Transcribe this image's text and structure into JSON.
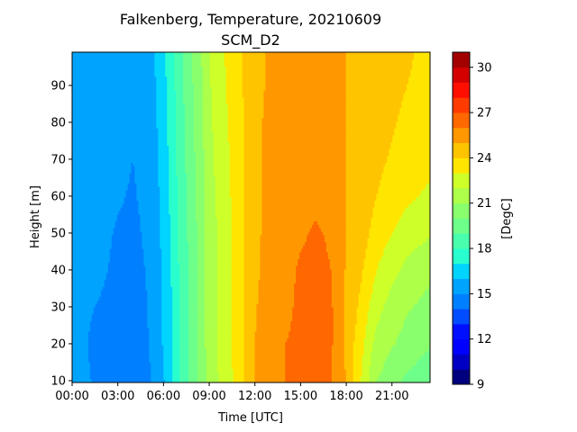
{
  "chart_data": {
    "type": "heatmap",
    "title": "Falkenberg, Temperature, 20210609",
    "subtitle": "SCM_D2",
    "xlabel": "Time [UTC]",
    "ylabel": "Height [m]",
    "colorbar_label": "[DegC]",
    "x_ticks": [
      "00:00",
      "03:00",
      "06:00",
      "09:00",
      "12:00",
      "15:00",
      "18:00",
      "21:00"
    ],
    "x_tick_hours": [
      0,
      3,
      6,
      9,
      12,
      15,
      18,
      21
    ],
    "xlim_hours": [
      0,
      23.5
    ],
    "y_ticks": [
      10,
      20,
      30,
      40,
      50,
      60,
      70,
      80,
      90
    ],
    "ylim": [
      9.5,
      99
    ],
    "colorbar_ticks": [
      9,
      12,
      15,
      18,
      21,
      24,
      27,
      30
    ],
    "colorbar_range": [
      9,
      31
    ],
    "colorbar_step": 1,
    "colorbar_colors": [
      "#00007f",
      "#0000c4",
      "#0000ff",
      "#0010ff",
      "#004cff",
      "#0080ff",
      "#00a4ff",
      "#00d4ff",
      "#29ffce",
      "#49ffad",
      "#6dff8a",
      "#8aff6d",
      "#adff49",
      "#ceff29",
      "#ffe600",
      "#ffc400",
      "#ff9800",
      "#ff6800",
      "#ff3b00",
      "#ff0f00",
      "#d40000",
      "#a30000"
    ],
    "heights_m": [
      10,
      20,
      30,
      40,
      50,
      60,
      70,
      80,
      90,
      99
    ],
    "series": [
      {
        "height_m": 10,
        "times_h": [
          0,
          0.5,
          1,
          1.5,
          2,
          3,
          4,
          4.8,
          5.5,
          6,
          6.5,
          7,
          7.5,
          8,
          8.5,
          9,
          10,
          11,
          12,
          13,
          14,
          15,
          16,
          17,
          17.5,
          18,
          18.5,
          19,
          19.5,
          20,
          21,
          22,
          23.5
        ],
        "temps_c": [
          15.6,
          15.4,
          15.1,
          14.9,
          14.8,
          14.7,
          14.5,
          14.7,
          15.2,
          15.9,
          16.8,
          17.9,
          18.7,
          19.6,
          20.4,
          21.4,
          22.4,
          23.5,
          25.0,
          25.8,
          26.0,
          26.2,
          26.2,
          26.0,
          25.7,
          24.9,
          23.8,
          22.9,
          21.9,
          21.0,
          20.3,
          19.8,
          19.3
        ]
      },
      {
        "height_m": 20,
        "times_h": [
          0,
          0.5,
          1,
          1.5,
          2,
          3,
          4,
          4.8,
          5.5,
          6,
          6.5,
          7,
          7.5,
          8,
          8.5,
          9,
          10,
          11,
          12,
          13,
          14,
          15,
          16,
          17,
          17.5,
          18,
          18.5,
          19,
          19.5,
          20,
          21,
          22,
          23.5
        ],
        "temps_c": [
          15.5,
          15.3,
          15.0,
          14.8,
          14.7,
          14.6,
          14.6,
          14.8,
          15.4,
          16.1,
          16.9,
          18.0,
          18.8,
          19.6,
          20.5,
          21.5,
          22.5,
          23.6,
          25.0,
          25.7,
          26.0,
          26.1,
          26.2,
          26.1,
          25.6,
          24.8,
          24.0,
          23.3,
          22.4,
          21.7,
          21.1,
          20.6,
          20.1
        ]
      },
      {
        "height_m": 30,
        "times_h": [
          0,
          0.5,
          1,
          1.5,
          2,
          3,
          4,
          4.8,
          5.5,
          6,
          6.5,
          7,
          7.5,
          8,
          8.5,
          9,
          10,
          11,
          12,
          13,
          14,
          15,
          16,
          17,
          17.5,
          18,
          18.5,
          19,
          19.5,
          20,
          21,
          22,
          23.5
        ],
        "temps_c": [
          15.5,
          15.3,
          15.1,
          15.0,
          14.9,
          14.7,
          14.6,
          14.9,
          15.4,
          16.1,
          16.9,
          18.0,
          18.8,
          19.6,
          20.5,
          21.5,
          22.5,
          23.6,
          24.9,
          25.6,
          25.9,
          26.1,
          26.2,
          26.1,
          25.6,
          24.8,
          24.3,
          23.7,
          23.0,
          22.3,
          21.6,
          21.1,
          20.7
        ]
      },
      {
        "height_m": 40,
        "times_h": [
          0,
          0.5,
          1,
          1.5,
          2,
          3,
          4,
          4.8,
          5.5,
          6,
          6.5,
          7,
          7.5,
          8,
          8.5,
          9,
          10,
          11,
          12,
          13,
          14,
          15,
          16,
          17,
          17.5,
          18,
          18.5,
          19,
          19.5,
          20,
          21,
          22,
          23.5
        ],
        "temps_c": [
          15.6,
          15.4,
          15.3,
          15.2,
          15.1,
          14.8,
          14.7,
          15.0,
          15.5,
          16.2,
          17.0,
          18.0,
          18.8,
          19.6,
          20.5,
          21.5,
          22.5,
          23.6,
          24.8,
          25.4,
          25.8,
          26.1,
          26.2,
          26.0,
          25.5,
          24.9,
          24.5,
          24.1,
          23.6,
          23.0,
          22.3,
          21.7,
          21.2
        ]
      },
      {
        "height_m": 50,
        "times_h": [
          0,
          0.5,
          1,
          1.5,
          2,
          3,
          4,
          4.8,
          5.5,
          6,
          6.5,
          7,
          7.5,
          8,
          8.5,
          9,
          10,
          11,
          12,
          13,
          14,
          15,
          16,
          17,
          17.5,
          18,
          18.5,
          19,
          19.5,
          20,
          21,
          22,
          23.5
        ],
        "temps_c": [
          15.6,
          15.5,
          15.4,
          15.3,
          15.2,
          14.9,
          14.8,
          15.1,
          15.6,
          16.3,
          17.1,
          18.1,
          18.9,
          19.7,
          20.5,
          21.5,
          22.5,
          23.6,
          24.8,
          25.3,
          25.7,
          25.9,
          26.1,
          25.9,
          25.5,
          25.0,
          24.7,
          24.4,
          24.0,
          23.6,
          23.0,
          22.5,
          22.1
        ]
      },
      {
        "height_m": 60,
        "times_h": [
          0,
          0.5,
          1,
          1.5,
          2,
          3,
          4,
          4.8,
          5.5,
          6,
          6.5,
          7,
          7.5,
          8,
          8.5,
          9,
          10,
          11,
          12,
          13,
          14,
          15,
          16,
          17,
          17.5,
          18,
          18.5,
          19,
          19.5,
          20,
          21,
          22,
          23.5
        ],
        "temps_c": [
          15.6,
          15.5,
          15.5,
          15.4,
          15.3,
          15.1,
          14.9,
          15.2,
          15.7,
          16.4,
          17.2,
          18.2,
          19.0,
          19.8,
          20.6,
          21.6,
          22.6,
          23.6,
          24.8,
          25.2,
          25.5,
          25.7,
          25.8,
          25.7,
          25.4,
          25.0,
          24.8,
          24.6,
          24.3,
          24.0,
          23.6,
          23.2,
          22.8
        ]
      },
      {
        "height_m": 70,
        "times_h": [
          0,
          0.5,
          1,
          1.5,
          2,
          3,
          4,
          4.8,
          5.5,
          6,
          6.5,
          7,
          7.5,
          8,
          8.5,
          9,
          10,
          11,
          12,
          13,
          14,
          15,
          16,
          17,
          17.5,
          18,
          18.5,
          19,
          19.5,
          20,
          21,
          22,
          23.5
        ],
        "temps_c": [
          15.6,
          15.5,
          15.5,
          15.5,
          15.4,
          15.2,
          15.0,
          15.3,
          15.8,
          16.5,
          17.3,
          18.3,
          19.1,
          19.9,
          20.7,
          21.7,
          22.7,
          23.6,
          24.8,
          25.2,
          25.4,
          25.5,
          25.6,
          25.5,
          25.3,
          25.0,
          24.9,
          24.7,
          24.5,
          24.2,
          23.9,
          23.6,
          23.3
        ]
      },
      {
        "height_m": 80,
        "times_h": [
          0,
          0.5,
          1,
          1.5,
          2,
          3,
          4,
          4.8,
          5.5,
          6,
          6.5,
          7,
          7.5,
          8,
          8.5,
          9,
          10,
          11,
          12,
          13,
          14,
          15,
          16,
          17,
          17.5,
          18,
          18.5,
          19,
          19.5,
          20,
          21,
          22,
          23.5
        ],
        "temps_c": [
          15.6,
          15.6,
          15.6,
          15.6,
          15.5,
          15.3,
          15.1,
          15.4,
          15.9,
          16.6,
          17.4,
          18.4,
          19.2,
          20.0,
          20.8,
          21.8,
          22.8,
          23.7,
          24.8,
          25.2,
          25.3,
          25.4,
          25.5,
          25.4,
          25.2,
          25.0,
          24.9,
          24.8,
          24.6,
          24.4,
          24.1,
          23.8,
          23.5
        ]
      },
      {
        "height_m": 90,
        "times_h": [
          0,
          0.5,
          1,
          1.5,
          2,
          3,
          4,
          4.8,
          5.5,
          6,
          6.5,
          7,
          7.5,
          8,
          8.5,
          9,
          10,
          11,
          12,
          13,
          14,
          15,
          16,
          17,
          17.5,
          18,
          18.5,
          19,
          19.5,
          20,
          21,
          22,
          23.5
        ],
        "temps_c": [
          15.6,
          15.6,
          15.6,
          15.6,
          15.6,
          15.5,
          15.4,
          15.5,
          16.0,
          16.7,
          17.5,
          18.5,
          19.3,
          20.1,
          20.9,
          21.9,
          22.9,
          23.8,
          24.8,
          25.1,
          25.2,
          25.3,
          25.4,
          25.3,
          25.1,
          25.0,
          24.9,
          24.8,
          24.7,
          24.5,
          24.2,
          24.0,
          23.7
        ]
      },
      {
        "height_m": 99,
        "times_h": [
          0,
          0.5,
          1,
          1.5,
          2,
          3,
          4,
          4.8,
          5.5,
          6,
          6.5,
          7,
          7.5,
          8,
          8.5,
          9,
          10,
          11,
          12,
          13,
          14,
          15,
          16,
          17,
          17.5,
          18,
          18.5,
          19,
          19.5,
          20,
          21,
          22,
          23.5
        ],
        "temps_c": [
          15.6,
          15.6,
          15.6,
          15.6,
          15.6,
          15.6,
          15.5,
          15.6,
          16.1,
          16.8,
          17.6,
          18.6,
          19.4,
          20.2,
          21.0,
          22.0,
          23.0,
          23.9,
          24.8,
          25.1,
          25.2,
          25.3,
          25.3,
          25.2,
          25.1,
          25.0,
          24.9,
          24.8,
          24.7,
          24.5,
          24.3,
          24.1,
          23.8
        ]
      }
    ]
  }
}
